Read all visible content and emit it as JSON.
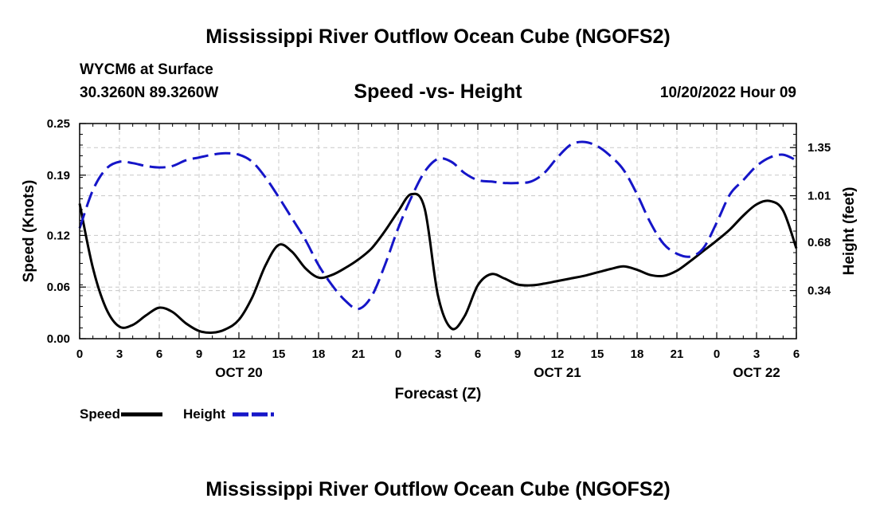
{
  "header": {
    "title": "Mississippi River Outflow Ocean Cube (NGOFS2)",
    "station": "WYCM6 at Surface",
    "coords": "30.3260N  89.3260W",
    "subtitle": "Speed -vs- Height",
    "datetime": "10/20/2022 Hour 09",
    "footer_title": "Mississippi River Outflow Ocean Cube (NGOFS2)"
  },
  "chart_data": {
    "type": "line",
    "title": "Speed -vs- Height",
    "xlabel": "Forecast (Z)",
    "ylabel_left": "Speed (Knots)",
    "ylabel_right": "Height (feet)",
    "x_range": [
      0,
      54
    ],
    "x_tick_hours": [
      0,
      3,
      6,
      9,
      12,
      15,
      18,
      21,
      24,
      27,
      30,
      33,
      36,
      39,
      42,
      45,
      48,
      51,
      54
    ],
    "x_tick_labels": [
      "0",
      "3",
      "6",
      "9",
      "12",
      "15",
      "18",
      "21",
      "0",
      "3",
      "6",
      "9",
      "12",
      "15",
      "18",
      "21",
      "0",
      "3",
      "6"
    ],
    "date_labels": [
      {
        "text": "OCT 20",
        "hour": 12
      },
      {
        "text": "OCT 21",
        "hour": 36
      },
      {
        "text": "OCT 22",
        "hour": 51
      }
    ],
    "y_left_range": [
      0,
      0.25
    ],
    "y_left_ticks": [
      0.0,
      0.06,
      0.12,
      0.19,
      0.25
    ],
    "y_left_tick_labels": [
      "0.00",
      "0.06",
      "0.12",
      "0.19",
      "0.25"
    ],
    "y_right_range": [
      0.0,
      1.52
    ],
    "y_right_ticks": [
      0.34,
      0.68,
      1.01,
      1.35
    ],
    "y_right_tick_labels": [
      "0.34",
      "0.68",
      "1.01",
      "1.35"
    ],
    "grid": true,
    "legend_position": "bottom-left",
    "series": [
      {
        "name": "Speed",
        "axis": "left",
        "color": "#000000",
        "style": "solid",
        "hours": [
          0,
          1,
          2,
          3,
          4,
          5,
          6,
          7,
          8,
          9,
          10,
          11,
          12,
          13,
          14,
          15,
          16,
          17,
          18,
          19,
          20,
          21,
          22,
          23,
          24,
          25,
          26,
          27,
          28,
          29,
          30,
          31,
          32,
          33,
          34,
          35,
          36,
          37,
          38,
          39,
          40,
          41,
          42,
          43,
          44,
          45,
          46,
          47,
          48,
          49,
          50,
          51,
          52,
          53,
          54
        ],
        "values": [
          0.157,
          0.082,
          0.035,
          0.014,
          0.016,
          0.027,
          0.036,
          0.031,
          0.018,
          0.009,
          0.007,
          0.011,
          0.022,
          0.048,
          0.085,
          0.109,
          0.101,
          0.082,
          0.071,
          0.074,
          0.082,
          0.092,
          0.105,
          0.125,
          0.148,
          0.168,
          0.151,
          0.05,
          0.012,
          0.026,
          0.062,
          0.075,
          0.07,
          0.063,
          0.062,
          0.064,
          0.067,
          0.07,
          0.073,
          0.077,
          0.081,
          0.084,
          0.08,
          0.074,
          0.073,
          0.079,
          0.09,
          0.102,
          0.114,
          0.127,
          0.143,
          0.156,
          0.16,
          0.149,
          0.105
        ]
      },
      {
        "name": "Height",
        "axis": "right",
        "color": "#1515c8",
        "style": "dashed",
        "hours": [
          0,
          1,
          2,
          3,
          4,
          5,
          6,
          7,
          8,
          9,
          10,
          11,
          12,
          13,
          14,
          15,
          16,
          17,
          18,
          19,
          20,
          21,
          22,
          23,
          24,
          25,
          26,
          27,
          28,
          29,
          30,
          31,
          32,
          33,
          34,
          35,
          36,
          37,
          38,
          39,
          40,
          41,
          42,
          43,
          44,
          45,
          46,
          47,
          48,
          49,
          50,
          51,
          52,
          53,
          54
        ],
        "values": [
          0.78,
          1.05,
          1.2,
          1.25,
          1.24,
          1.22,
          1.21,
          1.22,
          1.26,
          1.28,
          1.3,
          1.31,
          1.3,
          1.25,
          1.14,
          1.0,
          0.85,
          0.7,
          0.52,
          0.38,
          0.27,
          0.21,
          0.3,
          0.52,
          0.78,
          1.0,
          1.18,
          1.27,
          1.25,
          1.17,
          1.12,
          1.11,
          1.1,
          1.1,
          1.11,
          1.17,
          1.28,
          1.37,
          1.39,
          1.36,
          1.29,
          1.19,
          1.02,
          0.82,
          0.67,
          0.6,
          0.58,
          0.64,
          0.82,
          1.02,
          1.12,
          1.22,
          1.28,
          1.3,
          1.26
        ]
      }
    ],
    "legend": [
      {
        "name": "Speed",
        "color": "#000000",
        "style": "solid"
      },
      {
        "name": "Height",
        "color": "#1515c8",
        "style": "dashed"
      }
    ]
  }
}
